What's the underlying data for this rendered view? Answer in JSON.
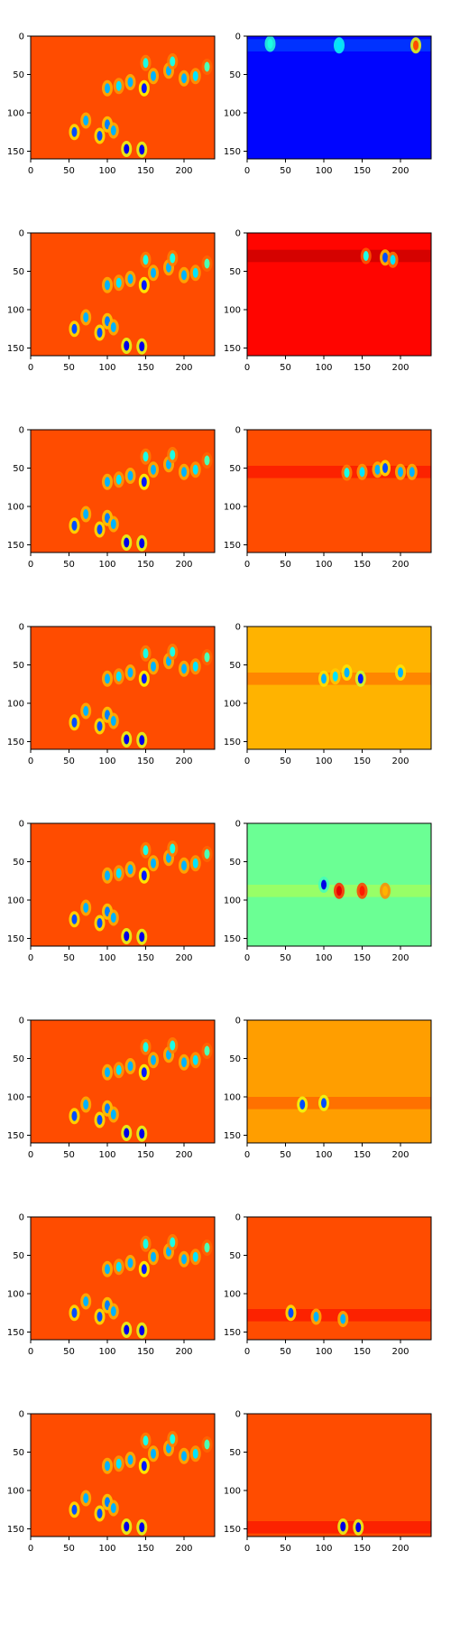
{
  "figure": {
    "rows": 8,
    "cols": 2,
    "colormap": "jet"
  },
  "chart_data": {
    "type": "heatmap",
    "panel_count": 16,
    "image_shape": [
      160,
      240
    ],
    "xlim": [
      0,
      240
    ],
    "ylim": [
      160,
      0
    ],
    "y_inverted": true,
    "xticks": [
      0,
      50,
      100,
      150,
      200
    ],
    "yticks": [
      0,
      50,
      100,
      150
    ],
    "grid": false,
    "legend": "none",
    "title": "",
    "xlabel": "",
    "ylabel": "",
    "left_column": {
      "description_type": "full image with all features highlighted",
      "background_value": 0.8,
      "features": [
        {
          "x": 57,
          "y": 125,
          "value": 0.2
        },
        {
          "x": 72,
          "y": 110,
          "value": 0.3
        },
        {
          "x": 90,
          "y": 130,
          "value": 0.2
        },
        {
          "x": 100,
          "y": 115,
          "value": 0.25
        },
        {
          "x": 108,
          "y": 123,
          "value": 0.3
        },
        {
          "x": 125,
          "y": 147,
          "value": 0.1
        },
        {
          "x": 145,
          "y": 148,
          "value": 0.1
        },
        {
          "x": 100,
          "y": 68,
          "value": 0.3
        },
        {
          "x": 115,
          "y": 65,
          "value": 0.35
        },
        {
          "x": 130,
          "y": 60,
          "value": 0.3
        },
        {
          "x": 148,
          "y": 68,
          "value": 0.15
        },
        {
          "x": 150,
          "y": 35,
          "value": 0.4
        },
        {
          "x": 160,
          "y": 52,
          "value": 0.3
        },
        {
          "x": 180,
          "y": 45,
          "value": 0.3
        },
        {
          "x": 185,
          "y": 33,
          "value": 0.4
        },
        {
          "x": 200,
          "y": 55,
          "value": 0.3
        },
        {
          "x": 215,
          "y": 52,
          "value": 0.35
        },
        {
          "x": 230,
          "y": 40,
          "value": 0.45
        }
      ]
    },
    "right_column": [
      {
        "background_value": 0.13,
        "band_y": 12,
        "features": [
          {
            "x": 220,
            "y": 12,
            "value": 0.8
          },
          {
            "x": 30,
            "y": 10,
            "value": 0.4
          },
          {
            "x": 120,
            "y": 12,
            "value": 0.35
          }
        ]
      },
      {
        "background_value": 0.87,
        "band_y": 30,
        "features": [
          {
            "x": 155,
            "y": 30,
            "value": 0.4
          },
          {
            "x": 180,
            "y": 32,
            "value": 0.2
          },
          {
            "x": 190,
            "y": 35,
            "value": 0.35
          }
        ]
      },
      {
        "background_value": 0.8,
        "band_y": 55,
        "features": [
          {
            "x": 130,
            "y": 56,
            "value": 0.4
          },
          {
            "x": 150,
            "y": 55,
            "value": 0.35
          },
          {
            "x": 170,
            "y": 52,
            "value": 0.3
          },
          {
            "x": 180,
            "y": 50,
            "value": 0.2
          },
          {
            "x": 200,
            "y": 55,
            "value": 0.3
          },
          {
            "x": 215,
            "y": 55,
            "value": 0.3
          }
        ]
      },
      {
        "background_value": 0.7,
        "band_y": 68,
        "features": [
          {
            "x": 100,
            "y": 68,
            "value": 0.3
          },
          {
            "x": 115,
            "y": 65,
            "value": 0.35
          },
          {
            "x": 130,
            "y": 60,
            "value": 0.3
          },
          {
            "x": 148,
            "y": 68,
            "value": 0.15
          },
          {
            "x": 200,
            "y": 60,
            "value": 0.3
          }
        ]
      },
      {
        "background_value": 0.48,
        "band_y": 88,
        "features": [
          {
            "x": 100,
            "y": 80,
            "value": 0.1
          },
          {
            "x": 120,
            "y": 88,
            "value": 0.9
          },
          {
            "x": 150,
            "y": 88,
            "value": 0.85
          },
          {
            "x": 180,
            "y": 88,
            "value": 0.7
          }
        ]
      },
      {
        "background_value": 0.72,
        "band_y": 108,
        "features": [
          {
            "x": 72,
            "y": 110,
            "value": 0.2
          },
          {
            "x": 100,
            "y": 108,
            "value": 0.2
          }
        ]
      },
      {
        "background_value": 0.8,
        "band_y": 128,
        "features": [
          {
            "x": 57,
            "y": 125,
            "value": 0.2
          },
          {
            "x": 90,
            "y": 130,
            "value": 0.3
          },
          {
            "x": 125,
            "y": 133,
            "value": 0.3
          }
        ]
      },
      {
        "background_value": 0.8,
        "band_y": 148,
        "features": [
          {
            "x": 125,
            "y": 147,
            "value": 0.1
          },
          {
            "x": 145,
            "y": 148,
            "value": 0.1
          }
        ]
      }
    ]
  }
}
